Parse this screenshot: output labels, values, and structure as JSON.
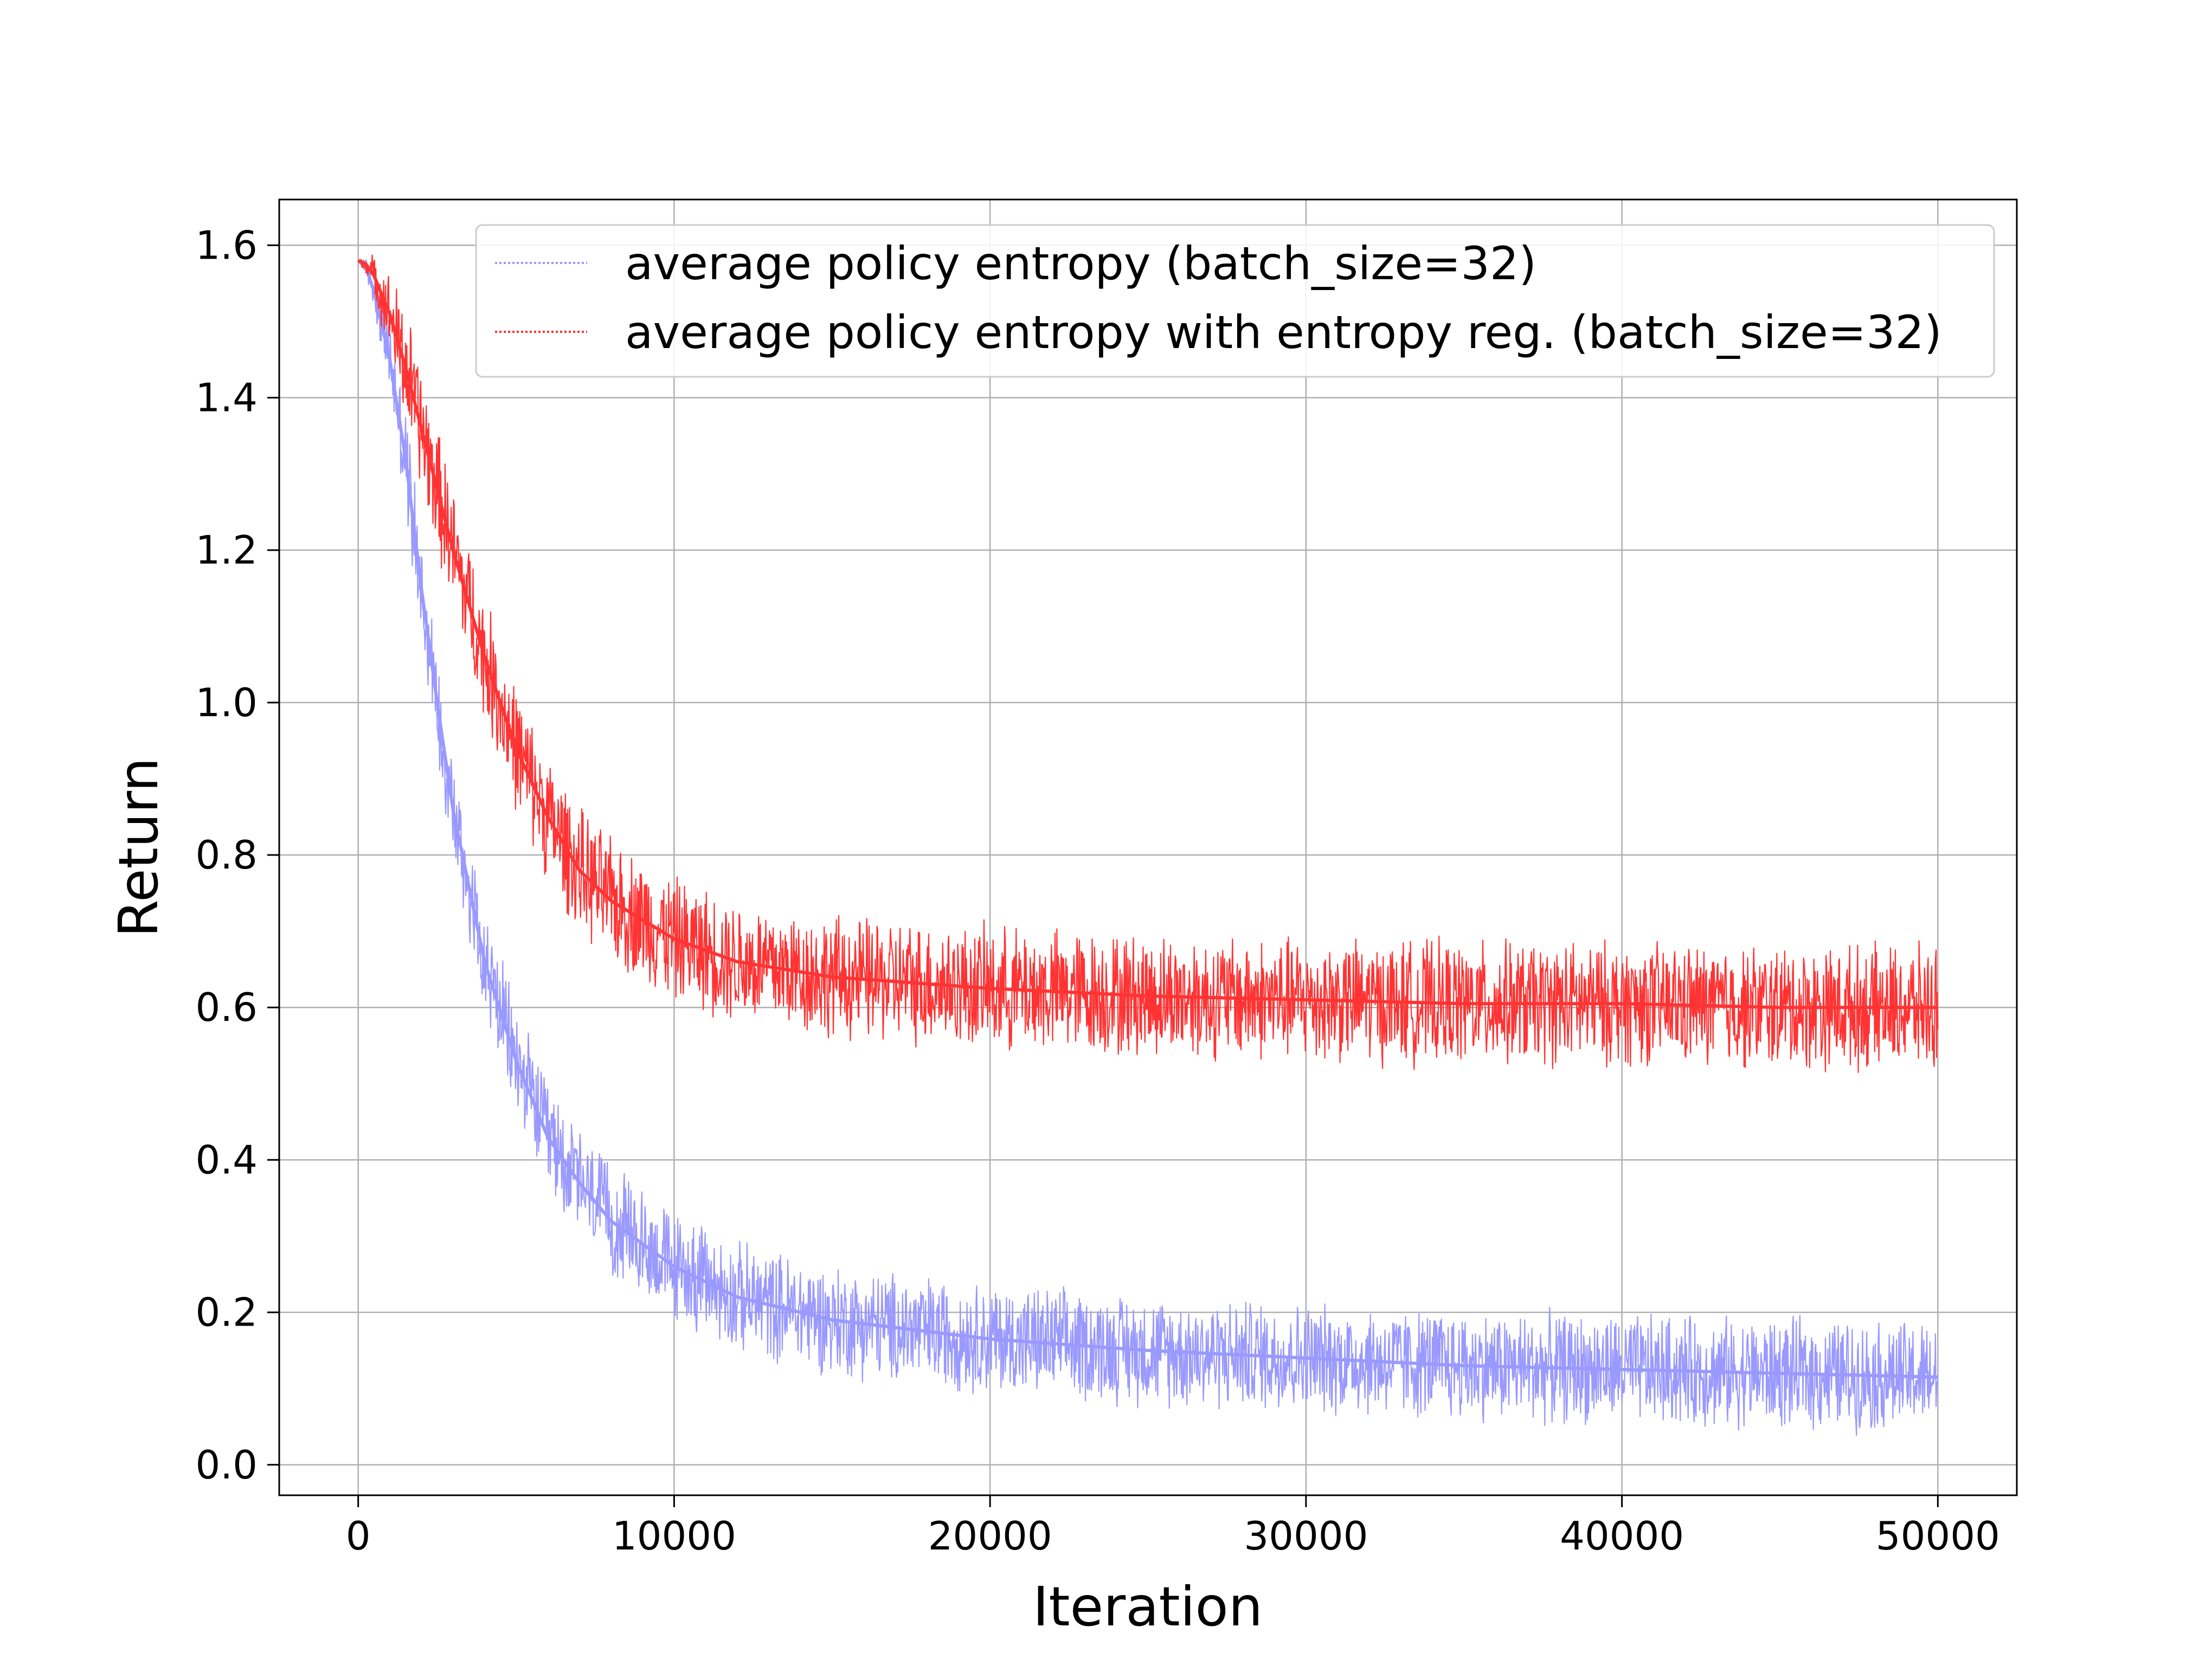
{
  "chart_data": {
    "type": "line",
    "xlabel": "Iteration",
    "ylabel": "Return",
    "xlim": [
      -2500,
      52500
    ],
    "ylim": [
      -0.04,
      1.66
    ],
    "x_ticks": [
      0,
      10000,
      20000,
      30000,
      40000,
      50000
    ],
    "x_tick_labels": [
      "0",
      "10000",
      "20000",
      "30000",
      "40000",
      "50000"
    ],
    "y_ticks": [
      0.0,
      0.2,
      0.4,
      0.6,
      0.8,
      1.0,
      1.2,
      1.4,
      1.6
    ],
    "y_tick_labels": [
      "0.0",
      "0.2",
      "0.4",
      "0.6",
      "0.8",
      "1.0",
      "1.2",
      "1.4",
      "1.6"
    ],
    "grid": true,
    "legend_position": "top-right",
    "series": [
      {
        "name": "average policy entropy (batch_size=32)",
        "color": "#9999ff",
        "line_style": "dotted",
        "noise_band": 0.08,
        "x": [
          0,
          250,
          500,
          1000,
          1500,
          2000,
          2500,
          3000,
          4000,
          5000,
          6000,
          7000,
          8000,
          10000,
          12000,
          15000,
          20000,
          25000,
          30000,
          35000,
          40000,
          45000,
          50000
        ],
        "values": [
          1.58,
          1.57,
          1.54,
          1.45,
          1.32,
          1.15,
          1.0,
          0.86,
          0.66,
          0.53,
          0.43,
          0.37,
          0.32,
          0.26,
          0.22,
          0.19,
          0.165,
          0.15,
          0.14,
          0.13,
          0.125,
          0.12,
          0.115
        ]
      },
      {
        "name": "average policy entropy with entropy reg. (batch_size=32)",
        "color": "#ff3333",
        "line_style": "dotted",
        "noise_band": 0.09,
        "x": [
          0,
          250,
          500,
          1000,
          1500,
          2000,
          2500,
          3000,
          4000,
          5000,
          6000,
          7000,
          8000,
          10000,
          12000,
          15000,
          20000,
          25000,
          30000,
          35000,
          40000,
          45000,
          50000
        ],
        "values": [
          1.58,
          1.575,
          1.56,
          1.51,
          1.44,
          1.36,
          1.28,
          1.2,
          1.06,
          0.94,
          0.85,
          0.78,
          0.74,
          0.69,
          0.66,
          0.64,
          0.625,
          0.615,
          0.61,
          0.605,
          0.605,
          0.6,
          0.6
        ]
      }
    ]
  }
}
